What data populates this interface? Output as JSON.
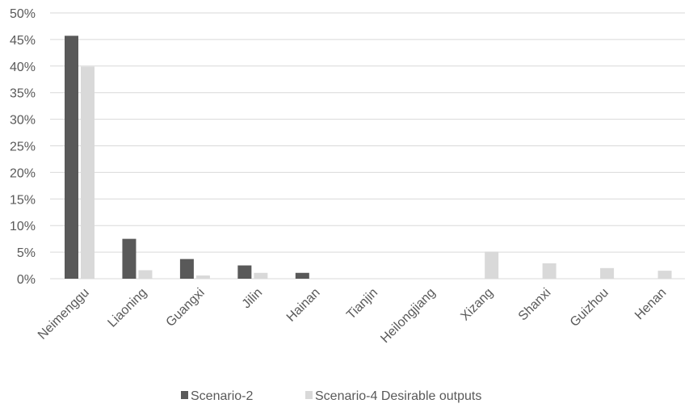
{
  "chart_data": {
    "type": "bar",
    "title": "",
    "xlabel": "",
    "ylabel": "",
    "ylim": [
      0,
      50
    ],
    "y_unit": "%",
    "yticks": [
      0,
      5,
      10,
      15,
      20,
      25,
      30,
      35,
      40,
      45,
      50
    ],
    "grid": true,
    "legend_position": "bottom",
    "categories": [
      "Neimenggu",
      "Liaoning",
      "Guangxi",
      "Jilin",
      "Hainan",
      "Tianjin",
      "Heilongjiang",
      "Xizang",
      "Shanxi",
      "Guizhou",
      "Henan"
    ],
    "series": [
      {
        "name": "Scenario-2",
        "color": "#595959",
        "values": [
          45.7,
          7.5,
          3.7,
          2.5,
          1.1,
          0,
          0,
          0,
          0,
          0,
          0
        ]
      },
      {
        "name": "Scenario-4 Desirable outputs",
        "color": "#d9d9d9",
        "values": [
          39.9,
          1.6,
          0.6,
          1.1,
          0,
          0,
          0,
          5.1,
          2.9,
          2.0,
          1.5
        ]
      }
    ]
  }
}
